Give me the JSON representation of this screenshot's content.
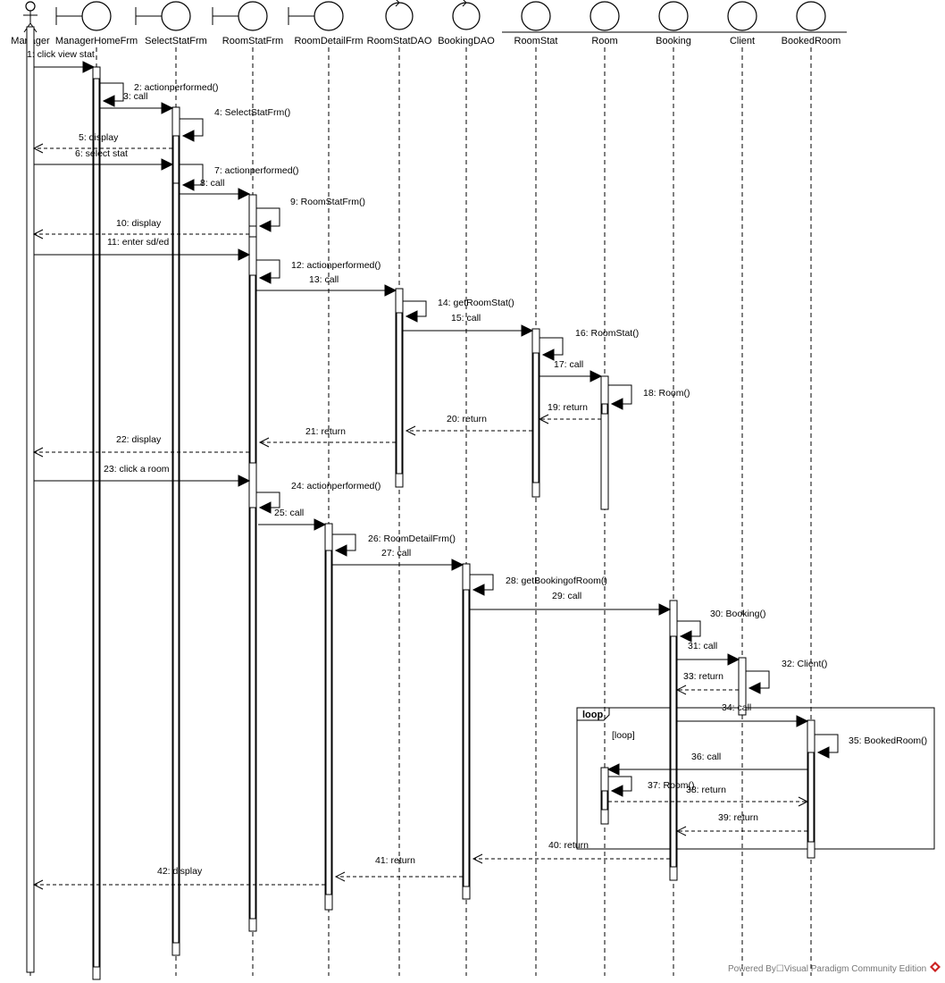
{
  "participants": [
    {
      "id": "manager",
      "name": "Manager",
      "kind": "actor"
    },
    {
      "id": "managerhome",
      "name": "ManagerHomeFrm",
      "kind": "boundary"
    },
    {
      "id": "selectstat",
      "name": "SelectStatFrm",
      "kind": "boundary"
    },
    {
      "id": "roomstatfrm",
      "name": "RoomStatFrm",
      "kind": "boundary"
    },
    {
      "id": "roomdetail",
      "name": "RoomDetailFrm",
      "kind": "boundary"
    },
    {
      "id": "roomstatdao",
      "name": "RoomStatDAO",
      "kind": "control"
    },
    {
      "id": "bookingdao",
      "name": "BookingDAO",
      "kind": "control"
    },
    {
      "id": "roomstat",
      "name": "RoomStat",
      "kind": "entity"
    },
    {
      "id": "room",
      "name": "Room",
      "kind": "entity"
    },
    {
      "id": "booking",
      "name": "Booking",
      "kind": "entity"
    },
    {
      "id": "client",
      "name": "Client",
      "kind": "entity"
    },
    {
      "id": "bookedroom",
      "name": "BookedRoom",
      "kind": "entity"
    }
  ],
  "messages": [
    {
      "n": 1,
      "label": "1: click view stat",
      "from": "manager",
      "to": "managerhome",
      "type": "call"
    },
    {
      "n": 2,
      "label": "2: actionperformed()",
      "from": "managerhome",
      "to": "managerhome",
      "type": "self"
    },
    {
      "n": 3,
      "label": "3: call",
      "from": "managerhome",
      "to": "selectstat",
      "type": "call"
    },
    {
      "n": 4,
      "label": "4: SelectStatFrm()",
      "from": "selectstat",
      "to": "selectstat",
      "type": "self"
    },
    {
      "n": 5,
      "label": "5: display",
      "from": "selectstat",
      "to": "manager",
      "type": "return"
    },
    {
      "n": 6,
      "label": "6: select stat",
      "from": "manager",
      "to": "selectstat",
      "type": "call"
    },
    {
      "n": 7,
      "label": "7: actionperformed()",
      "from": "selectstat",
      "to": "selectstat",
      "type": "self"
    },
    {
      "n": 8,
      "label": "8: call",
      "from": "selectstat",
      "to": "roomstatfrm",
      "type": "call"
    },
    {
      "n": 9,
      "label": "9: RoomStatFrm()",
      "from": "roomstatfrm",
      "to": "roomstatfrm",
      "type": "self"
    },
    {
      "n": 10,
      "label": "10: display",
      "from": "roomstatfrm",
      "to": "manager",
      "type": "return"
    },
    {
      "n": 11,
      "label": "11: enter sd/ed",
      "from": "manager",
      "to": "roomstatfrm",
      "type": "call"
    },
    {
      "n": 12,
      "label": "12: actionperformed()",
      "from": "roomstatfrm",
      "to": "roomstatfrm",
      "type": "self"
    },
    {
      "n": 13,
      "label": "13: call",
      "from": "roomstatfrm",
      "to": "roomstatdao",
      "type": "call"
    },
    {
      "n": 14,
      "label": "14: getRoomStat()",
      "from": "roomstatdao",
      "to": "roomstatdao",
      "type": "self"
    },
    {
      "n": 15,
      "label": "15: call",
      "from": "roomstatdao",
      "to": "roomstat",
      "type": "call"
    },
    {
      "n": 16,
      "label": "16: RoomStat()",
      "from": "roomstat",
      "to": "roomstat",
      "type": "self"
    },
    {
      "n": 17,
      "label": "17: call",
      "from": "roomstat",
      "to": "room",
      "type": "call"
    },
    {
      "n": 18,
      "label": "18: Room()",
      "from": "room",
      "to": "room",
      "type": "self"
    },
    {
      "n": 19,
      "label": "19: return",
      "from": "room",
      "to": "roomstat",
      "type": "return"
    },
    {
      "n": 20,
      "label": "20: return",
      "from": "roomstat",
      "to": "roomstatdao",
      "type": "return"
    },
    {
      "n": 21,
      "label": "21: return",
      "from": "roomstatdao",
      "to": "roomstatfrm",
      "type": "return"
    },
    {
      "n": 22,
      "label": "22: display",
      "from": "roomstatfrm",
      "to": "manager",
      "type": "return"
    },
    {
      "n": 23,
      "label": "23: click a room",
      "from": "manager",
      "to": "roomstatfrm",
      "type": "call"
    },
    {
      "n": 24,
      "label": "24: actionperformed()",
      "from": "roomstatfrm",
      "to": "roomstatfrm",
      "type": "self"
    },
    {
      "n": 25,
      "label": "25: call",
      "from": "roomstatfrm",
      "to": "roomdetail",
      "type": "call"
    },
    {
      "n": 26,
      "label": "26: RoomDetailFrm()",
      "from": "roomdetail",
      "to": "roomdetail",
      "type": "self"
    },
    {
      "n": 27,
      "label": "27: call",
      "from": "roomdetail",
      "to": "bookingdao",
      "type": "call"
    },
    {
      "n": 28,
      "label": "28: getBookingofRoom()",
      "from": "bookingdao",
      "to": "bookingdao",
      "type": "self"
    },
    {
      "n": 29,
      "label": "29: call",
      "from": "bookingdao",
      "to": "booking",
      "type": "call"
    },
    {
      "n": 30,
      "label": "30: Booking()",
      "from": "booking",
      "to": "booking",
      "type": "self"
    },
    {
      "n": 31,
      "label": "31: call",
      "from": "booking",
      "to": "client",
      "type": "call"
    },
    {
      "n": 32,
      "label": "32: Client()",
      "from": "client",
      "to": "client",
      "type": "self"
    },
    {
      "n": 33,
      "label": "33: return",
      "from": "client",
      "to": "booking",
      "type": "return"
    },
    {
      "n": 34,
      "label": "34: call",
      "from": "booking",
      "to": "bookedroom",
      "type": "call"
    },
    {
      "n": 35,
      "label": "35: BookedRoom()",
      "from": "bookedroom",
      "to": "bookedroom",
      "type": "self"
    },
    {
      "n": 36,
      "label": "36: call",
      "from": "bookedroom",
      "to": "room",
      "type": "call"
    },
    {
      "n": 37,
      "label": "37: Room()",
      "from": "room",
      "to": "room",
      "type": "self"
    },
    {
      "n": 38,
      "label": "38: return",
      "from": "room",
      "to": "bookedroom",
      "type": "return"
    },
    {
      "n": 39,
      "label": "39: return",
      "from": "bookedroom",
      "to": "booking",
      "type": "return"
    },
    {
      "n": 40,
      "label": "40: return",
      "from": "booking",
      "to": "bookingdao",
      "type": "return"
    },
    {
      "n": 41,
      "label": "41: return",
      "from": "bookingdao",
      "to": "roomdetail",
      "type": "return"
    },
    {
      "n": 42,
      "label": "42: display",
      "from": "roomdetail",
      "to": "manager",
      "type": "return"
    }
  ],
  "loop_fragment": {
    "tag": "loop",
    "guard": "[loop]"
  },
  "watermark": "Powered By☐Visual Paradigm Community Edition"
}
